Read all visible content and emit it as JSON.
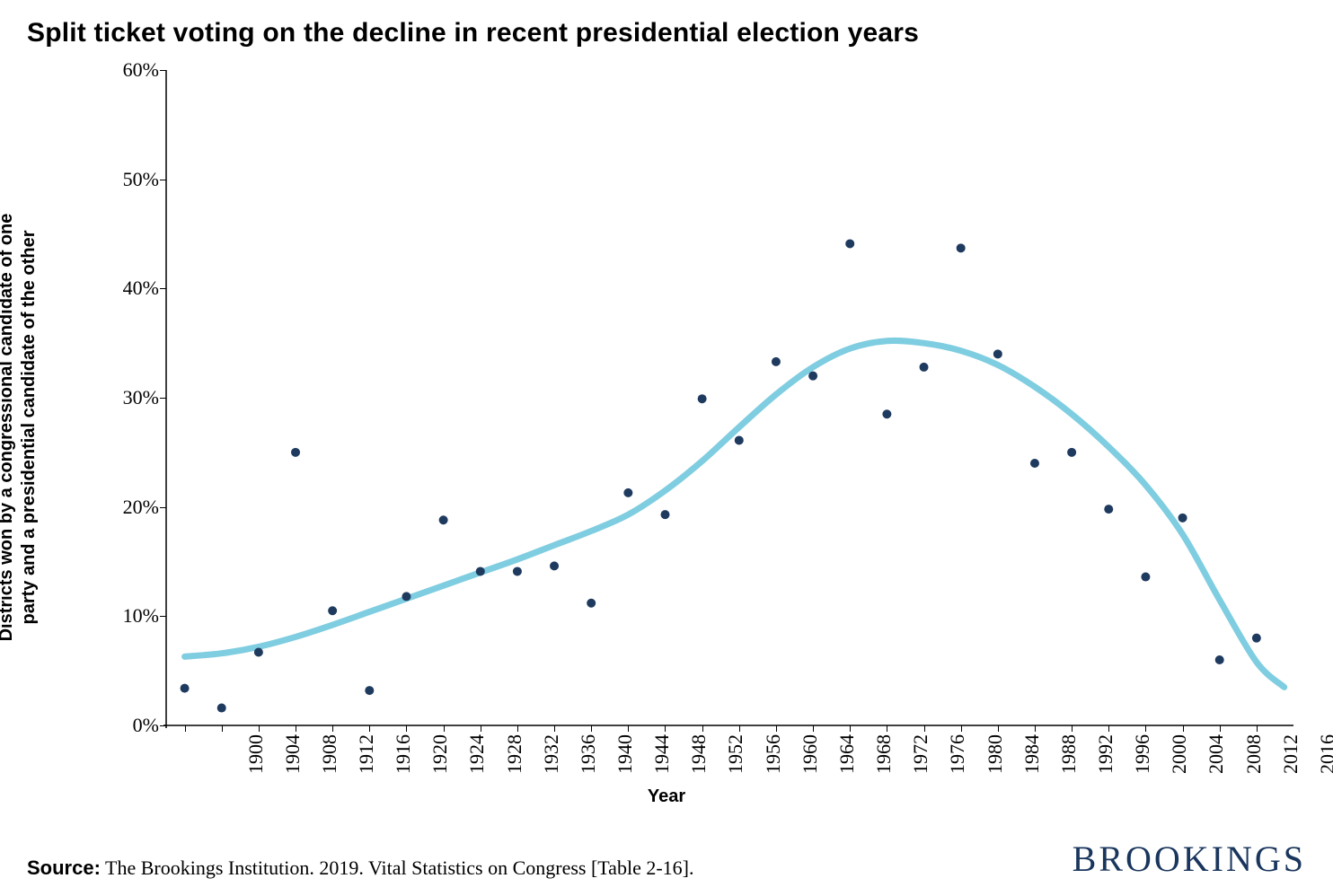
{
  "title": "Split ticket voting on the decline in recent presidential election years",
  "y_axis_label": "Districts won by a congressional candidate of one\nparty and a presidential candidate of the other",
  "x_axis_label": "Year",
  "source_label": "Source:",
  "source_text": " The Brookings Institution. 2019. Vital Statistics on Congress [Table 2-16].",
  "logo_text": "BROOKINGS",
  "logo_color": "#1a365d",
  "chart": {
    "type": "scatter+smooth",
    "background_color": "#ffffff",
    "axis_color": "#000000",
    "xlim": [
      1898,
      2020
    ],
    "ylim": [
      0,
      60
    ],
    "y_ticks": [
      0,
      10,
      20,
      30,
      40,
      50,
      60
    ],
    "y_tick_suffix": "%",
    "x_ticks": [
      1900,
      1904,
      1908,
      1912,
      1916,
      1920,
      1924,
      1928,
      1932,
      1936,
      1940,
      1944,
      1948,
      1952,
      1956,
      1960,
      1964,
      1968,
      1972,
      1976,
      1980,
      1984,
      1988,
      1992,
      1996,
      2000,
      2004,
      2008,
      2012,
      2016
    ],
    "tick_font_size": 22,
    "label_font_size": 20,
    "title_font_size": 30,
    "points": {
      "color": "#1f3a5f",
      "radius": 5,
      "data": [
        {
          "x": 1900,
          "y": 3.4
        },
        {
          "x": 1904,
          "y": 1.6
        },
        {
          "x": 1908,
          "y": 6.7
        },
        {
          "x": 1912,
          "y": 25.0
        },
        {
          "x": 1916,
          "y": 10.5
        },
        {
          "x": 1920,
          "y": 3.2
        },
        {
          "x": 1924,
          "y": 11.8
        },
        {
          "x": 1928,
          "y": 18.8
        },
        {
          "x": 1932,
          "y": 14.1
        },
        {
          "x": 1936,
          "y": 14.1
        },
        {
          "x": 1940,
          "y": 14.6
        },
        {
          "x": 1944,
          "y": 11.2
        },
        {
          "x": 1948,
          "y": 21.3
        },
        {
          "x": 1952,
          "y": 19.3
        },
        {
          "x": 1956,
          "y": 29.9
        },
        {
          "x": 1960,
          "y": 26.1
        },
        {
          "x": 1964,
          "y": 33.3
        },
        {
          "x": 1968,
          "y": 32.0
        },
        {
          "x": 1972,
          "y": 44.1
        },
        {
          "x": 1976,
          "y": 28.5
        },
        {
          "x": 1980,
          "y": 32.8
        },
        {
          "x": 1984,
          "y": 43.7
        },
        {
          "x": 1988,
          "y": 34.0
        },
        {
          "x": 1992,
          "y": 24.0
        },
        {
          "x": 1996,
          "y": 25.0
        },
        {
          "x": 2000,
          "y": 19.8
        },
        {
          "x": 2004,
          "y": 13.6
        },
        {
          "x": 2008,
          "y": 19.0
        },
        {
          "x": 2012,
          "y": 6.0
        },
        {
          "x": 2016,
          "y": 8.0
        }
      ]
    },
    "smooth_line": {
      "color": "#7fcde0",
      "width": 7,
      "data": [
        {
          "x": 1900,
          "y": 6.3
        },
        {
          "x": 1904,
          "y": 6.6
        },
        {
          "x": 1908,
          "y": 7.2
        },
        {
          "x": 1912,
          "y": 8.1
        },
        {
          "x": 1916,
          "y": 9.2
        },
        {
          "x": 1920,
          "y": 10.4
        },
        {
          "x": 1924,
          "y": 11.6
        },
        {
          "x": 1928,
          "y": 12.8
        },
        {
          "x": 1932,
          "y": 14.0
        },
        {
          "x": 1936,
          "y": 15.2
        },
        {
          "x": 1940,
          "y": 16.5
        },
        {
          "x": 1944,
          "y": 17.8
        },
        {
          "x": 1948,
          "y": 19.3
        },
        {
          "x": 1952,
          "y": 21.5
        },
        {
          "x": 1956,
          "y": 24.2
        },
        {
          "x": 1960,
          "y": 27.3
        },
        {
          "x": 1964,
          "y": 30.3
        },
        {
          "x": 1968,
          "y": 32.8
        },
        {
          "x": 1972,
          "y": 34.5
        },
        {
          "x": 1976,
          "y": 35.2
        },
        {
          "x": 1980,
          "y": 35.0
        },
        {
          "x": 1984,
          "y": 34.3
        },
        {
          "x": 1988,
          "y": 33.0
        },
        {
          "x": 1992,
          "y": 31.0
        },
        {
          "x": 1996,
          "y": 28.5
        },
        {
          "x": 2000,
          "y": 25.5
        },
        {
          "x": 2004,
          "y": 22.0
        },
        {
          "x": 2008,
          "y": 17.5
        },
        {
          "x": 2012,
          "y": 11.5
        },
        {
          "x": 2016,
          "y": 5.8
        },
        {
          "x": 2019,
          "y": 3.5
        }
      ]
    }
  }
}
